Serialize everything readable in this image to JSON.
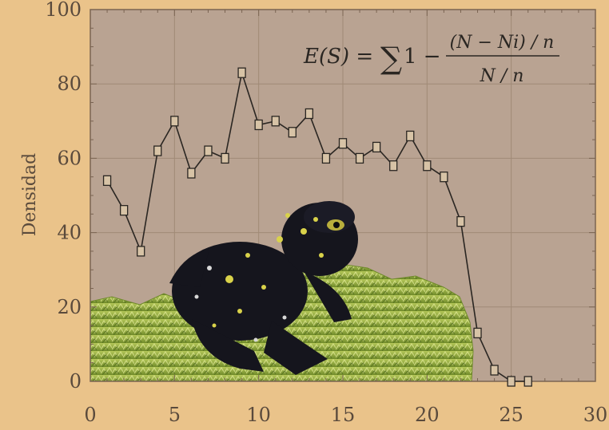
{
  "chart_data": {
    "type": "line",
    "ylabel": "Densidad",
    "xlabel": "",
    "xlim": [
      0,
      30
    ],
    "ylim": [
      0,
      100
    ],
    "xticks": [
      "0",
      "5",
      "10",
      "15",
      "20",
      "25",
      "30"
    ],
    "yticks": [
      "0",
      "20",
      "40",
      "60",
      "80",
      "100"
    ],
    "grid": true,
    "marker": "square",
    "formula": {
      "lhs": "E(S) = ",
      "sum": "∑",
      "one_minus": "1 − ",
      "numerator": "(N − Ni) / n",
      "denominator": "N / n"
    },
    "series": [
      {
        "x": [
          1,
          2,
          3,
          4,
          5,
          6,
          7,
          8,
          9,
          10,
          11,
          12,
          13,
          14,
          15,
          16,
          17,
          18,
          19,
          20,
          21,
          22,
          23,
          24,
          25,
          26
        ],
        "y": [
          54,
          46,
          35,
          62,
          70,
          56,
          62,
          60,
          83,
          69,
          70,
          67,
          72,
          60,
          64,
          60,
          63,
          58,
          66,
          58,
          55,
          43,
          13,
          3,
          0,
          0
        ]
      }
    ]
  },
  "colors": {
    "page_background": "#eac38a",
    "plot_background": "#b9a392",
    "line": "#2a2622",
    "marker_fill": "#d7c3a6",
    "grid": "#a08a76",
    "tick_text": "#5a4a3c",
    "frame": "#7a6452",
    "frog_body": "#15151d",
    "frog_spots": "#d9d24a",
    "moss": "#8fae3a"
  }
}
